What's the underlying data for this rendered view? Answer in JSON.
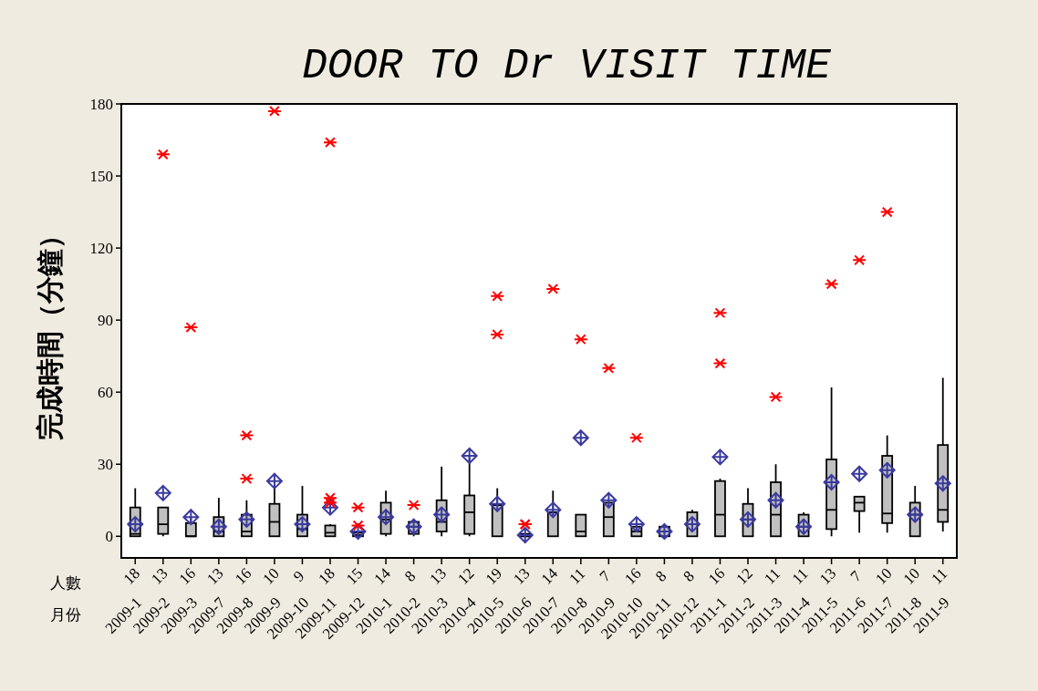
{
  "chart_data": {
    "type": "box",
    "title": "DOOR TO Dr VISIT TIME",
    "ylabel": "完成時間（分鐘）",
    "categories": [
      "2009-1",
      "2009-2",
      "2009-3",
      "2009-7",
      "2009-8",
      "2009-9",
      "2009-10",
      "2009-11",
      "2009-12",
      "2010-1",
      "2010-2",
      "2010-3",
      "2010-4",
      "2010-5",
      "2010-6",
      "2010-7",
      "2010-8",
      "2010-9",
      "2010-10",
      "2010-11",
      "2010-12",
      "2011-1",
      "2011-2",
      "2011-3",
      "2011-4",
      "2011-5",
      "2011-6",
      "2011-7",
      "2011-8",
      "2011-9"
    ],
    "series": [
      {
        "color": "#c0c0c0",
        "boxes": [
          {
            "low": 0,
            "q1": 0,
            "median": 1,
            "q3": 12,
            "high": 20,
            "mean": 5
          },
          {
            "low": 0,
            "q1": 1,
            "median": 5,
            "q3": 12,
            "high": 12,
            "mean": 18,
            "outliers": [
              159
            ]
          },
          {
            "low": 0,
            "q1": 0,
            "median": 0,
            "q3": 5.5,
            "high": 8,
            "mean": 8,
            "outliers": [
              87
            ]
          },
          {
            "low": 0,
            "q1": 0,
            "median": 2,
            "q3": 8,
            "high": 16,
            "mean": 4
          },
          {
            "low": 0,
            "q1": 0,
            "median": 2,
            "q3": 9,
            "high": 15,
            "mean": 7,
            "outliers": [
              24,
              42
            ]
          },
          {
            "low": 0,
            "q1": 0,
            "median": 6,
            "q3": 13.5,
            "high": 23,
            "mean": 23,
            "outliers": [
              177
            ]
          },
          {
            "low": 0,
            "q1": 0,
            "median": 3,
            "q3": 9,
            "high": 21,
            "mean": 5
          },
          {
            "low": 0,
            "q1": 0,
            "median": 1.5,
            "q3": 4.5,
            "high": 5,
            "mean": 12,
            "outliers": [
              14,
              16,
              164
            ]
          },
          {
            "low": 0,
            "q1": 0,
            "median": 0.5,
            "q3": 1.5,
            "high": 1.5,
            "mean": 2,
            "outliers": [
              4.5,
              12
            ]
          },
          {
            "low": 0,
            "q1": 1,
            "median": 7,
            "q3": 14,
            "high": 19,
            "mean": 8
          },
          {
            "low": 0,
            "q1": 1,
            "median": 4,
            "q3": 6,
            "high": 6,
            "mean": 4,
            "outliers": [
              13
            ]
          },
          {
            "low": 0,
            "q1": 2,
            "median": 6,
            "q3": 15,
            "high": 29,
            "mean": 9
          },
          {
            "low": 0,
            "q1": 1,
            "median": 10,
            "q3": 17,
            "high": 33,
            "mean": 33.5
          },
          {
            "low": 0,
            "q1": 0,
            "median": 13,
            "q3": 13,
            "high": 20,
            "mean": 13.5,
            "outliers": [
              84,
              100
            ]
          },
          {
            "low": 0,
            "q1": 0,
            "median": 0,
            "q3": 1,
            "high": 1,
            "mean": 0.5,
            "outliers": [
              5,
              5
            ]
          },
          {
            "low": 0,
            "q1": 0,
            "median": 10,
            "q3": 10,
            "high": 19,
            "mean": 11,
            "outliers": [
              103
            ]
          },
          {
            "low": 0,
            "q1": 0,
            "median": 2,
            "q3": 9,
            "high": 9,
            "mean": 41,
            "outliers": [
              82
            ]
          },
          {
            "low": 0,
            "q1": 0,
            "median": 8,
            "q3": 14,
            "high": 14,
            "mean": 15,
            "outliers": [
              70
            ]
          },
          {
            "low": 0,
            "q1": 0,
            "median": 2,
            "q3": 4,
            "high": 6,
            "mean": 5,
            "outliers": [
              41
            ]
          },
          {
            "low": 0,
            "q1": 0,
            "median": 2,
            "q3": 4,
            "high": 5,
            "mean": 2
          },
          {
            "low": 0,
            "q1": 0,
            "median": 5,
            "q3": 10,
            "high": 11,
            "mean": 5
          },
          {
            "low": 0,
            "q1": 0,
            "median": 9,
            "q3": 23,
            "high": 24,
            "mean": 33,
            "outliers": [
              72,
              93
            ]
          },
          {
            "low": 0,
            "q1": 0,
            "median": 7,
            "q3": 13.5,
            "high": 20,
            "mean": 7
          },
          {
            "low": 0,
            "q1": 0,
            "median": 9,
            "q3": 22.5,
            "high": 30,
            "mean": 15,
            "outliers": [
              58
            ]
          },
          {
            "low": 0,
            "q1": 0,
            "median": 4,
            "q3": 9,
            "high": 10,
            "mean": 4
          },
          {
            "low": 0,
            "q1": 3,
            "median": 11,
            "q3": 32,
            "high": 62,
            "mean": 22.5,
            "outliers": [
              105
            ]
          },
          {
            "low": 1.5,
            "q1": 10.5,
            "median": 14,
            "q3": 16.5,
            "high": 16.5,
            "mean": 26,
            "outliers": [
              115
            ]
          },
          {
            "low": 1.5,
            "q1": 5.5,
            "median": 9.5,
            "q3": 33.5,
            "high": 42,
            "mean": 27.5,
            "outliers": [
              135
            ]
          },
          {
            "low": 0,
            "q1": 0,
            "median": 9,
            "q3": 14,
            "high": 21,
            "mean": 9
          },
          {
            "low": 2,
            "q1": 6,
            "median": 11,
            "q3": 38,
            "high": 66,
            "mean": 22
          }
        ]
      }
    ],
    "ylim": [
      -9,
      180
    ],
    "yticks": [
      0,
      30,
      60,
      90,
      120,
      150,
      180
    ],
    "annotations": [
      "人數",
      "月份",
      "18",
      "13",
      "16",
      "13",
      "16",
      "10",
      "9",
      "18",
      "15",
      "14",
      "8",
      "13",
      "12",
      "19",
      "13",
      "14",
      "11",
      "7",
      "16",
      "8",
      "8",
      "16",
      "12",
      "11",
      "11",
      "13",
      "7",
      "10",
      "10",
      "11"
    ]
  }
}
